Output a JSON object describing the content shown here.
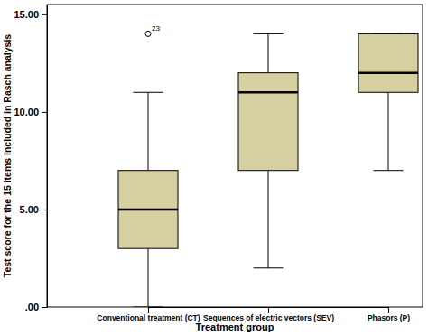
{
  "chart_data": {
    "type": "box",
    "x_label": "Treatment group",
    "y_label": "Test score for the 15 items included in Rasch analysis",
    "categories": [
      "Conventional treatment (CT)",
      "Sequences of electric vectors (SEV)",
      "Phasors (P)"
    ],
    "color": "#d6cf9f",
    "boxes": [
      {
        "min": 0,
        "q1": 3,
        "median": 5,
        "q3": 7,
        "max": 11,
        "outliers": [
          {
            "value": 14,
            "label": "23"
          }
        ]
      },
      {
        "min": 2,
        "q1": 7,
        "median": 11,
        "q3": 12,
        "max": 14,
        "outliers": []
      },
      {
        "min": 7,
        "q1": 11,
        "median": 12,
        "q3": 14,
        "max": 14,
        "outliers": []
      }
    ],
    "ylim": [
      0,
      15.5
    ],
    "yticks": [
      {
        "value": 0,
        "label": ".00"
      },
      {
        "value": 5,
        "label": "5.00"
      },
      {
        "value": 10,
        "label": "10.00"
      },
      {
        "value": 15,
        "label": "15.00"
      }
    ],
    "grid": false
  }
}
